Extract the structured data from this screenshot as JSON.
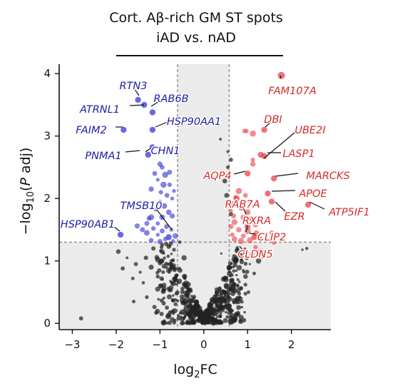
{
  "chart_data": {
    "type": "scatter",
    "title_line1": "Cort. Aβ-rich GM ST spots",
    "title_line2": "iAD vs. nAD",
    "xlabel": {
      "main": "log",
      "sub": "2",
      "rest": "FC"
    },
    "ylabel": {
      "pre": "−log",
      "sub": "10",
      "mid": "(",
      "ital": "P",
      "post": " adj)"
    },
    "xlim": [
      -3.3,
      2.9
    ],
    "ylim": [
      -0.1,
      4.15
    ],
    "xticks": [
      -3,
      -2,
      -1,
      0,
      1,
      2
    ],
    "xtick_labels": [
      "−3",
      "−2",
      "−1",
      "0",
      "1",
      "2"
    ],
    "yticks": [
      0,
      1,
      2,
      3,
      4
    ],
    "ytick_labels": [
      "0",
      "1",
      "2",
      "3",
      "4"
    ],
    "fc_threshold": [
      -0.6,
      0.58
    ],
    "p_threshold": 1.3,
    "colors": {
      "up": "#e8434a",
      "down": "#3535d8",
      "ns": "#222222",
      "shade": "#ebebeb",
      "down_label": "#2020a8",
      "up_label": "#d62a2a"
    },
    "down_genes": [
      {
        "gene": "RTN3",
        "x": -1.5,
        "y": 3.58
      },
      {
        "gene": "RAB6B",
        "x": -1.17,
        "y": 3.38
      },
      {
        "gene": "ATRNL1",
        "x": -1.36,
        "y": 3.5
      },
      {
        "gene": "FAIM2",
        "x": -1.83,
        "y": 3.1
      },
      {
        "gene": "HSP90AA1",
        "x": -1.17,
        "y": 3.1
      },
      {
        "gene": "PNMA1",
        "x": -1.27,
        "y": 2.7
      },
      {
        "gene": "CHN1",
        "x": -1.17,
        "y": 2.82
      },
      {
        "gene": "TMSB10",
        "x": -0.8,
        "y": 1.38
      },
      {
        "gene": "HSP90AB1",
        "x": -1.9,
        "y": 1.42
      }
    ],
    "up_genes": [
      {
        "gene": "FAM107A",
        "x": 1.77,
        "y": 3.97
      },
      {
        "gene": "DBI",
        "x": 1.38,
        "y": 3.1
      },
      {
        "gene": "UBE2I",
        "x": 1.3,
        "y": 2.7
      },
      {
        "gene": "LASP1",
        "x": 1.38,
        "y": 2.68
      },
      {
        "gene": "AQP4",
        "x": 1.0,
        "y": 2.4
      },
      {
        "gene": "MARCKS",
        "x": 1.6,
        "y": 2.32
      },
      {
        "gene": "APOE",
        "x": 1.46,
        "y": 2.08
      },
      {
        "gene": "RAB7A",
        "x": 0.75,
        "y": 2.0
      },
      {
        "gene": "EZR",
        "x": 1.55,
        "y": 1.95
      },
      {
        "gene": "ATP5IF1",
        "x": 2.38,
        "y": 1.9
      },
      {
        "gene": "RXRA",
        "x": 1.0,
        "y": 1.55
      },
      {
        "gene": "CLIP2",
        "x": 1.15,
        "y": 1.38
      },
      {
        "gene": "CLDN5",
        "x": 0.95,
        "y": 1.15
      }
    ],
    "down_points": [
      [
        -1.0,
        2.55
      ],
      [
        -0.95,
        2.5
      ],
      [
        -0.88,
        2.38
      ],
      [
        -0.78,
        2.22
      ],
      [
        -0.92,
        2.22
      ],
      [
        -1.05,
        2.3
      ],
      [
        -1.12,
        2.4
      ],
      [
        -0.98,
        2.1
      ],
      [
        -0.84,
        2.05
      ],
      [
        -1.2,
        2.15
      ],
      [
        -0.72,
        2.0
      ],
      [
        -1.0,
        1.95
      ],
      [
        -0.9,
        1.88
      ],
      [
        -1.1,
        1.82
      ],
      [
        -0.8,
        1.78
      ],
      [
        -0.95,
        1.7
      ],
      [
        -1.25,
        1.68
      ],
      [
        -0.72,
        1.72
      ],
      [
        -1.05,
        1.6
      ],
      [
        -0.85,
        1.55
      ],
      [
        -1.15,
        1.52
      ],
      [
        -0.95,
        1.48
      ],
      [
        -0.74,
        1.5
      ],
      [
        -1.3,
        1.45
      ],
      [
        -1.05,
        1.42
      ],
      [
        -0.65,
        1.4
      ],
      [
        -0.88,
        1.35
      ],
      [
        -1.2,
        1.33
      ],
      [
        -1.0,
        1.31
      ],
      [
        -0.7,
        1.32
      ],
      [
        -1.4,
        1.5
      ],
      [
        -1.52,
        1.56
      ],
      [
        -1.3,
        1.6
      ],
      [
        -1.2,
        1.7
      ],
      [
        -0.68,
        2.12
      ],
      [
        -0.78,
        2.42
      ]
    ],
    "up_points": [
      [
        0.93,
        3.08
      ],
      [
        0.98,
        3.08
      ],
      [
        1.12,
        3.04
      ],
      [
        1.12,
        2.62
      ],
      [
        1.12,
        2.55
      ],
      [
        0.8,
        2.12
      ],
      [
        0.72,
        2.02
      ],
      [
        0.95,
        2.05
      ],
      [
        1.05,
        1.95
      ],
      [
        0.66,
        1.92
      ],
      [
        0.85,
        1.85
      ],
      [
        1.0,
        1.78
      ],
      [
        0.62,
        1.8
      ],
      [
        0.9,
        1.7
      ],
      [
        1.08,
        1.68
      ],
      [
        0.7,
        1.62
      ],
      [
        1.18,
        1.58
      ],
      [
        0.62,
        1.55
      ],
      [
        0.8,
        1.5
      ],
      [
        1.0,
        1.48
      ],
      [
        0.65,
        1.42
      ],
      [
        0.9,
        1.4
      ],
      [
        1.2,
        1.44
      ],
      [
        0.7,
        1.35
      ],
      [
        1.05,
        1.33
      ],
      [
        0.85,
        1.32
      ],
      [
        1.28,
        1.36
      ],
      [
        1.55,
        1.45
      ],
      [
        1.6,
        1.3
      ],
      [
        0.68,
        1.72
      ],
      [
        1.18,
        1.22
      ],
      [
        1.3,
        1.15
      ],
      [
        0.95,
        1.12
      ],
      [
        1.1,
        1.1
      ]
    ],
    "ns_extra": [
      [
        -0.75,
        1.28
      ],
      [
        -0.68,
        1.18
      ],
      [
        -1.15,
        1.2
      ],
      [
        -1.32,
        1.05
      ],
      [
        -1.55,
        0.95
      ],
      [
        -1.45,
        0.82
      ],
      [
        -1.75,
        1.05
      ],
      [
        -1.95,
        1.15
      ],
      [
        -1.62,
        0.72
      ],
      [
        -1.2,
        0.9
      ],
      [
        -1.38,
        0.65
      ],
      [
        -1.05,
        0.75
      ],
      [
        -1.85,
        0.88
      ],
      [
        -2.8,
        0.08
      ],
      [
        -1.6,
        0.35
      ],
      [
        -1.3,
        0.42
      ],
      [
        0.55,
        2.75
      ],
      [
        0.55,
        2.5
      ],
      [
        0.38,
        2.95
      ],
      [
        0.62,
        2.62
      ],
      [
        0.48,
        2.28
      ],
      [
        0.52,
        2.05
      ],
      [
        0.62,
        1.75
      ],
      [
        0.75,
        1.05
      ],
      [
        1.05,
        0.95
      ],
      [
        0.9,
        0.85
      ],
      [
        1.25,
        1.0
      ],
      [
        0.78,
        0.7
      ],
      [
        1.15,
        0.8
      ],
      [
        0.95,
        0.62
      ],
      [
        2.35,
        1.2
      ],
      [
        2.25,
        1.18
      ],
      [
        1.35,
        1.05
      ],
      [
        1.02,
        0.5
      ],
      [
        0.82,
        0.42
      ],
      [
        -0.55,
        1.3
      ],
      [
        -0.45,
        1.05
      ],
      [
        0.4,
        1.12
      ]
    ]
  }
}
